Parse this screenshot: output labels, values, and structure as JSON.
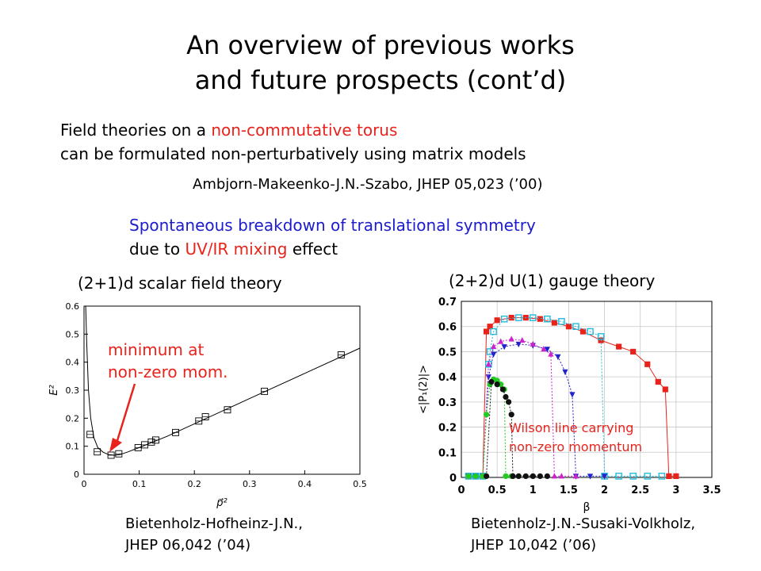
{
  "title": {
    "line1": "An overview of previous works",
    "line2": "and future prospects (cont’d)"
  },
  "intro": {
    "line1_pre": "Field theories on a ",
    "line1_highlight": "non-commutative torus",
    "line2": "can be formulated non-perturbatively using matrix models",
    "citation": "Ambjorn-Makeenko-J.N.-Szabo, JHEP 05,023 (’00)"
  },
  "result": {
    "line1": "Spontaneous breakdown of translational symmetry",
    "line2_pre": "due to ",
    "line2_highlight": "UV/IR mixing",
    "line2_post": " effect"
  },
  "left_panel": {
    "heading": "(2+1)d scalar field theory",
    "annotation_line1": "minimum at",
    "annotation_line2": "non-zero mom.",
    "citation_line1": "Bietenholz-Hofheinz-J.N.,",
    "citation_line2": "JHEP 06,042 (’04)"
  },
  "right_panel": {
    "heading": "(2+2)d U(1) gauge theory",
    "annotation_line1": "Wilson line carrying",
    "annotation_line2": "non-zero momentum",
    "citation_line1": "Bietenholz-J.N.-Susaki-Volkholz,",
    "citation_line2": "JHEP 10,042 (’06)"
  },
  "colors": {
    "accent_red": "#e8231c",
    "accent_blue": "#1c1ccc"
  },
  "chart_data": [
    {
      "type": "scatter",
      "xlabel": "p⃗²",
      "ylabel": "E²",
      "xlim": [
        0,
        0.5
      ],
      "ylim": [
        0,
        0.6
      ],
      "xticks": [
        "0",
        "0.1",
        "0.2",
        "0.3",
        "0.4",
        "0.5"
      ],
      "yticks": [
        "0",
        "0.1",
        "0.2",
        "0.3",
        "0.4",
        "0.5",
        "0.6"
      ],
      "xtick_values": [
        0,
        0.1,
        0.2,
        0.3,
        0.4,
        0.5
      ],
      "ytick_values": [
        0,
        0.1,
        0.2,
        0.3,
        0.4,
        0.5,
        0.6
      ],
      "points": [
        [
          0.011,
          0.142
        ],
        [
          0.024,
          0.08
        ],
        [
          0.049,
          0.068
        ],
        [
          0.063,
          0.073
        ],
        [
          0.098,
          0.095
        ],
        [
          0.11,
          0.105
        ],
        [
          0.122,
          0.115
        ],
        [
          0.13,
          0.122
        ],
        [
          0.166,
          0.149
        ],
        [
          0.208,
          0.19
        ],
        [
          0.22,
          0.205
        ],
        [
          0.26,
          0.23
        ],
        [
          0.327,
          0.296
        ],
        [
          0.466,
          0.426
        ]
      ],
      "fit_curve": [
        [
          0.003,
          0.6
        ],
        [
          0.005,
          0.46
        ],
        [
          0.008,
          0.3
        ],
        [
          0.012,
          0.2
        ],
        [
          0.018,
          0.13
        ],
        [
          0.025,
          0.095
        ],
        [
          0.035,
          0.078
        ],
        [
          0.045,
          0.07
        ],
        [
          0.055,
          0.068
        ],
        [
          0.065,
          0.07
        ],
        [
          0.08,
          0.08
        ],
        [
          0.1,
          0.095
        ],
        [
          0.15,
          0.135
        ],
        [
          0.2,
          0.18
        ],
        [
          0.3,
          0.27
        ],
        [
          0.4,
          0.36
        ],
        [
          0.5,
          0.45
        ]
      ],
      "grid": false
    },
    {
      "type": "line",
      "xlabel": "β",
      "ylabel": "<|P₁(2)|>",
      "xlim": [
        0,
        3.5
      ],
      "ylim": [
        0,
        0.7
      ],
      "xticks": [
        "0",
        "0.5",
        "1",
        "1.5",
        "2",
        "2.5",
        "3",
        "3.5"
      ],
      "yticks": [
        "0",
        "0.1",
        "0.2",
        "0.3",
        "0.4",
        "0.5",
        "0.6",
        "0.7"
      ],
      "xtick_values": [
        0,
        0.5,
        1,
        1.5,
        2,
        2.5,
        3,
        3.5
      ],
      "ytick_values": [
        0,
        0.1,
        0.2,
        0.3,
        0.4,
        0.5,
        0.6,
        0.7
      ],
      "grid": true,
      "series": [
        {
          "color": "#e8231c",
          "marker": "square",
          "points": [
            [
              0.1,
              0.005
            ],
            [
              0.2,
              0.005
            ],
            [
              0.3,
              0.005
            ],
            [
              0.35,
              0.58
            ],
            [
              0.4,
              0.6
            ],
            [
              0.5,
              0.625
            ],
            [
              0.7,
              0.635
            ],
            [
              0.9,
              0.635
            ],
            [
              1.1,
              0.63
            ],
            [
              1.3,
              0.615
            ],
            [
              1.5,
              0.6
            ],
            [
              1.7,
              0.58
            ],
            [
              1.95,
              0.545
            ],
            [
              2.2,
              0.52
            ],
            [
              2.4,
              0.5
            ],
            [
              2.6,
              0.45
            ],
            [
              2.75,
              0.38
            ],
            [
              2.85,
              0.35
            ],
            [
              2.9,
              0.005
            ],
            [
              3.0,
              0.005
            ]
          ]
        },
        {
          "color": "#22bbdd",
          "marker": "square-open",
          "points": [
            [
              0.1,
              0.005
            ],
            [
              0.2,
              0.005
            ],
            [
              0.3,
              0.005
            ],
            [
              0.38,
              0.45
            ],
            [
              0.4,
              0.5
            ],
            [
              0.45,
              0.58
            ],
            [
              0.6,
              0.63
            ],
            [
              0.8,
              0.635
            ],
            [
              1.0,
              0.635
            ],
            [
              1.2,
              0.63
            ],
            [
              1.4,
              0.62
            ],
            [
              1.6,
              0.6
            ],
            [
              1.8,
              0.58
            ],
            [
              1.95,
              0.56
            ],
            [
              2.0,
              0.005
            ],
            [
              2.2,
              0.005
            ],
            [
              2.4,
              0.005
            ],
            [
              2.6,
              0.005
            ],
            [
              2.8,
              0.005
            ]
          ]
        },
        {
          "color": "#2222cc",
          "marker": "triangle-down",
          "points": [
            [
              0.1,
              0.005
            ],
            [
              0.2,
              0.005
            ],
            [
              0.3,
              0.005
            ],
            [
              0.38,
              0.4
            ],
            [
              0.45,
              0.49
            ],
            [
              0.6,
              0.52
            ],
            [
              0.8,
              0.53
            ],
            [
              1.0,
              0.525
            ],
            [
              1.2,
              0.51
            ],
            [
              1.35,
              0.48
            ],
            [
              1.45,
              0.42
            ],
            [
              1.55,
              0.33
            ],
            [
              1.6,
              0.005
            ],
            [
              1.8,
              0.005
            ],
            [
              2.0,
              0.005
            ]
          ]
        },
        {
          "color": "#cc22cc",
          "marker": "triangle-up",
          "points": [
            [
              0.1,
              0.005
            ],
            [
              0.2,
              0.005
            ],
            [
              0.3,
              0.005
            ],
            [
              0.38,
              0.45
            ],
            [
              0.45,
              0.52
            ],
            [
              0.55,
              0.54
            ],
            [
              0.7,
              0.55
            ],
            [
              0.85,
              0.545
            ],
            [
              1.0,
              0.53
            ],
            [
              1.15,
              0.51
            ],
            [
              1.25,
              0.49
            ],
            [
              1.3,
              0.005
            ],
            [
              1.4,
              0.005
            ],
            [
              1.6,
              0.005
            ]
          ]
        },
        {
          "color": "#22cc22",
          "marker": "circle",
          "points": [
            [
              0.1,
              0.005
            ],
            [
              0.2,
              0.005
            ],
            [
              0.3,
              0.005
            ],
            [
              0.35,
              0.25
            ],
            [
              0.4,
              0.37
            ],
            [
              0.45,
              0.39
            ],
            [
              0.5,
              0.385
            ],
            [
              0.55,
              0.37
            ],
            [
              0.6,
              0.35
            ],
            [
              0.62,
              0.005
            ],
            [
              0.7,
              0.005
            ],
            [
              0.8,
              0.005
            ],
            [
              1.0,
              0.005
            ]
          ]
        },
        {
          "color": "#111111",
          "marker": "circle",
          "points": [
            [
              0.35,
              0.005
            ],
            [
              0.42,
              0.38
            ],
            [
              0.5,
              0.37
            ],
            [
              0.58,
              0.35
            ],
            [
              0.62,
              0.32
            ],
            [
              0.66,
              0.3
            ],
            [
              0.7,
              0.25
            ],
            [
              0.72,
              0.005
            ],
            [
              0.8,
              0.005
            ],
            [
              0.9,
              0.005
            ],
            [
              1.0,
              0.005
            ],
            [
              1.1,
              0.005
            ],
            [
              1.2,
              0.005
            ]
          ]
        }
      ]
    }
  ]
}
